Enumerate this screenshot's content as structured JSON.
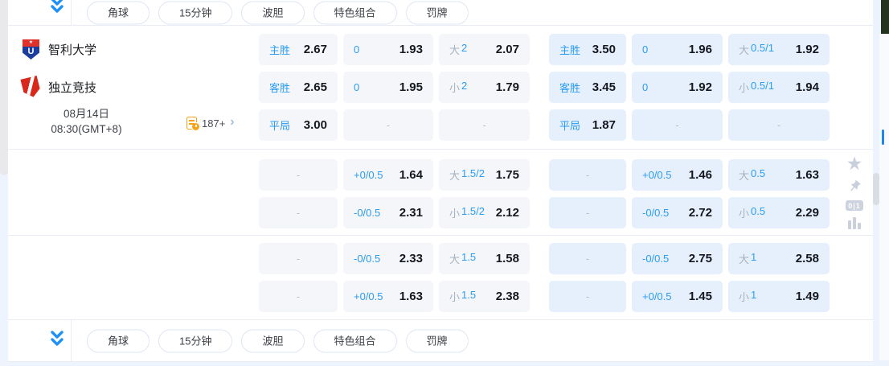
{
  "colors": {
    "accent_blue": "#2b9cf4",
    "muted_gray": "#a6b2c0",
    "cell_bg": "#f4f6f9",
    "cell_bg_highlight": "#e6f0fc",
    "footer_bg": "#eef4fd",
    "orange_icon": "#f7a21b"
  },
  "toolbar": {
    "tabs": [
      "角球",
      "15分钟",
      "波胆",
      "特色组合",
      "罚牌"
    ]
  },
  "match": {
    "home_name": "智利大学",
    "away_name": "独立竞技",
    "home_logo_letter": "U",
    "home_logo_star": "★",
    "date": "08月14日",
    "time": "08:30(GMT+8)",
    "markets_count": "187+",
    "markets_chevron": "›"
  },
  "side_rail": {
    "icons": [
      "favorite-star",
      "pin",
      "scoreboard",
      "stats"
    ],
    "star_glyph": "★",
    "scoreboard_label": "0|1"
  },
  "odds": {
    "blocks": [
      {
        "rows": [
          [
            {
              "l": "主胜",
              "v": "2.67"
            },
            {
              "l": "0",
              "v": "1.93"
            },
            {
              "p": "大",
              "l": "2",
              "v": "2.07"
            },
            {
              "l": "主胜",
              "v": "3.50",
              "hl": true
            },
            {
              "l": "0",
              "v": "1.96",
              "hl": true
            },
            {
              "p": "大",
              "l": "0.5/1",
              "v": "1.92",
              "hl": true
            }
          ],
          [
            {
              "l": "客胜",
              "v": "2.65"
            },
            {
              "l": "0",
              "v": "1.95"
            },
            {
              "p": "小",
              "l": "2",
              "v": "1.79"
            },
            {
              "l": "客胜",
              "v": "3.45",
              "hl": true
            },
            {
              "l": "0",
              "v": "1.92",
              "hl": true
            },
            {
              "p": "小",
              "l": "0.5/1",
              "v": "1.94",
              "hl": true
            }
          ],
          [
            {
              "l": "平局",
              "v": "3.00"
            },
            {
              "dash": true,
              "v": "-"
            },
            {
              "dash": true,
              "v": "-"
            },
            {
              "l": "平局",
              "v": "1.87",
              "hl": true
            },
            {
              "dash": true,
              "v": "-",
              "hl": true
            },
            {
              "dash": true,
              "v": "-",
              "hl": true
            }
          ]
        ]
      },
      {
        "rows": [
          [
            {
              "dash": true,
              "v": "-"
            },
            {
              "l": "+0/0.5",
              "v": "1.64"
            },
            {
              "p": "大",
              "l": "1.5/2",
              "v": "1.75"
            },
            {
              "dash": true,
              "v": "-",
              "hl": true
            },
            {
              "l": "+0/0.5",
              "v": "1.46",
              "hl": true
            },
            {
              "p": "大",
              "l": "0.5",
              "v": "1.63",
              "hl": true
            }
          ],
          [
            {
              "dash": true,
              "v": "-"
            },
            {
              "l": "-0/0.5",
              "v": "2.31"
            },
            {
              "p": "小",
              "l": "1.5/2",
              "v": "2.12"
            },
            {
              "dash": true,
              "v": "-",
              "hl": true
            },
            {
              "l": "-0/0.5",
              "v": "2.72",
              "hl": true
            },
            {
              "p": "小",
              "l": "0.5",
              "v": "2.29",
              "hl": true
            }
          ]
        ]
      },
      {
        "rows": [
          [
            {
              "dash": true,
              "v": "-"
            },
            {
              "l": "-0/0.5",
              "v": "2.33"
            },
            {
              "p": "大",
              "l": "1.5",
              "v": "1.58"
            },
            {
              "dash": true,
              "v": "-",
              "hl": true
            },
            {
              "l": "-0/0.5",
              "v": "2.75",
              "hl": true
            },
            {
              "p": "大",
              "l": "1",
              "v": "2.58",
              "hl": true
            }
          ],
          [
            {
              "dash": true,
              "v": "-"
            },
            {
              "l": "+0/0.5",
              "v": "1.63"
            },
            {
              "p": "小",
              "l": "1.5",
              "v": "2.38"
            },
            {
              "dash": true,
              "v": "-",
              "hl": true
            },
            {
              "l": "+0/0.5",
              "v": "1.45",
              "hl": true
            },
            {
              "p": "小",
              "l": "1",
              "v": "1.49",
              "hl": true
            }
          ]
        ]
      }
    ]
  }
}
